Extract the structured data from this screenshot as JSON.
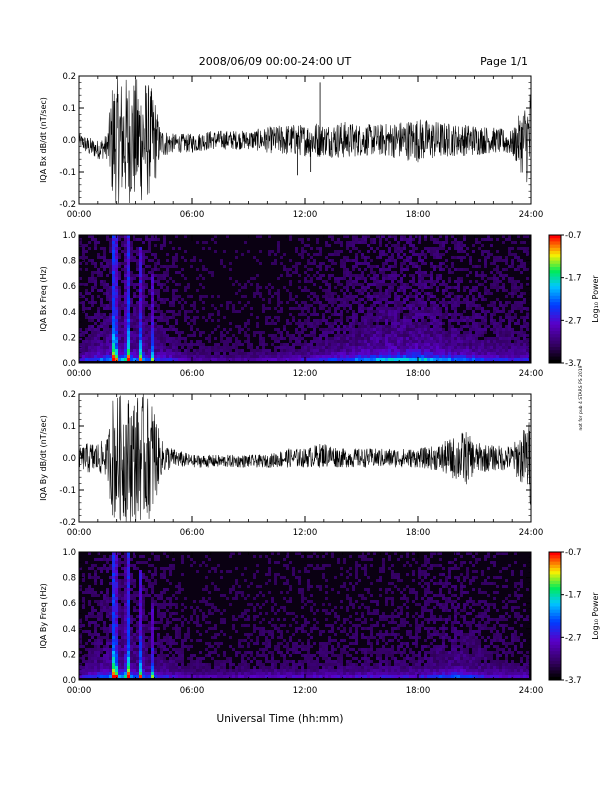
{
  "header": {
    "title": "2008/06/09  00:00-24:00 UT",
    "page": "Page 1/1"
  },
  "side_note": "not for pub 4 STARS PS 2019",
  "chart_data": [
    {
      "type": "line",
      "ylabel": "IQA Bx dB/dt (nT/sec)",
      "ylim": [
        -0.2,
        0.2
      ],
      "yticks": [
        "0.2",
        "0.1",
        "0.0",
        "-0.1",
        "-0.2"
      ],
      "xlim": [
        "00:00",
        "24:00"
      ],
      "xticks": [
        "00:00",
        "06:00",
        "12:00",
        "18:00",
        "24:00"
      ],
      "series": [
        {
          "time_hours": [
            0,
            0.5,
            1,
            1.5,
            1.8,
            2,
            2.5,
            3,
            3.5,
            4,
            4.3,
            5,
            6,
            7,
            8,
            9,
            10,
            11,
            12,
            12.5,
            13,
            14,
            15,
            16,
            17,
            18,
            19,
            20,
            21,
            22,
            23,
            23.9,
            24
          ],
          "amplitude": [
            0.02,
            0.03,
            0.03,
            0.04,
            0.2,
            0.2,
            0.2,
            0.2,
            0.2,
            0.15,
            0.05,
            0.03,
            0.03,
            0.03,
            0.03,
            0.03,
            0.04,
            0.05,
            0.05,
            0.06,
            0.05,
            0.06,
            0.05,
            0.05,
            0.06,
            0.07,
            0.06,
            0.05,
            0.05,
            0.04,
            0.04,
            0.15,
            0.2
          ],
          "baseline": [
            0.0,
            -0.02,
            -0.03,
            -0.02,
            0.0,
            0.0,
            0.0,
            0.0,
            0.0,
            0.0,
            -0.01,
            -0.01,
            -0.01,
            0.0,
            0.0,
            0.0,
            0.0,
            0.0,
            0.0,
            0.0,
            0.0,
            0.0,
            0.0,
            0.0,
            0.0,
            0.0,
            0.0,
            0.0,
            0.0,
            0.0,
            -0.01,
            0.0,
            0.0
          ],
          "spikes": [
            {
              "t": 12.8,
              "v": 0.18
            },
            {
              "t": 11.6,
              "v": -0.11
            },
            {
              "t": 12.3,
              "v": -0.1
            }
          ]
        }
      ]
    },
    {
      "type": "heatmap",
      "ylabel": "IQA Bx Freq (Hz)",
      "ylim": [
        0.0,
        1.0
      ],
      "yticks": [
        "1.0",
        "0.8",
        "0.6",
        "0.4",
        "0.2",
        "0.0"
      ],
      "xlim": [
        "00:00",
        "24:00"
      ],
      "xticks": [
        "00:00",
        "06:00",
        "12:00",
        "18:00",
        "24:00"
      ],
      "colorbar": {
        "label": "Log₁₀ Power",
        "range": [
          -3.7,
          -0.7
        ],
        "ticks": [
          "-0.7",
          "-1.7",
          "-2.7",
          "-3.7"
        ]
      },
      "bursts": [
        {
          "t": 1.9,
          "width": 0.12,
          "strength": 1.0,
          "top": 1.0
        },
        {
          "t": 2.6,
          "width": 0.1,
          "strength": 0.85,
          "top": 1.0
        },
        {
          "t": 3.3,
          "width": 0.1,
          "strength": 0.6,
          "top": 0.9
        },
        {
          "t": 3.9,
          "width": 0.08,
          "strength": 0.45,
          "top": 0.7
        }
      ],
      "activity_hours": [
        0,
        2,
        4,
        6,
        8,
        10,
        12,
        14,
        16,
        18,
        20,
        22,
        24
      ],
      "activity_level": [
        0.35,
        0.7,
        0.5,
        0.25,
        0.2,
        0.25,
        0.35,
        0.5,
        0.7,
        0.75,
        0.6,
        0.45,
        0.4
      ]
    },
    {
      "type": "line",
      "ylabel": "IQA By dB/dt (nT/sec)",
      "ylim": [
        -0.2,
        0.2
      ],
      "yticks": [
        "0.2",
        "0.1",
        "0.0",
        "-0.1",
        "-0.2"
      ],
      "xlim": [
        "00:00",
        "24:00"
      ],
      "xticks": [
        "00:00",
        "06:00",
        "12:00",
        "18:00",
        "24:00"
      ],
      "series": [
        {
          "time_hours": [
            0,
            0.5,
            1,
            1.5,
            1.8,
            2,
            2.5,
            3,
            3.5,
            4,
            4.3,
            5,
            6,
            7,
            8,
            9,
            10,
            11,
            12,
            13,
            14,
            15,
            16,
            17,
            18,
            19,
            20,
            20.5,
            21,
            22,
            23,
            23.9,
            24
          ],
          "amplitude": [
            0.03,
            0.05,
            0.05,
            0.06,
            0.2,
            0.2,
            0.2,
            0.2,
            0.2,
            0.18,
            0.06,
            0.03,
            0.02,
            0.02,
            0.02,
            0.02,
            0.02,
            0.03,
            0.03,
            0.04,
            0.03,
            0.03,
            0.03,
            0.03,
            0.03,
            0.04,
            0.07,
            0.09,
            0.05,
            0.04,
            0.04,
            0.12,
            0.2
          ],
          "baseline": [
            0.0,
            0.0,
            0.0,
            0.0,
            0.0,
            0.0,
            0.0,
            0.0,
            0.0,
            0.0,
            0.0,
            0.0,
            -0.01,
            -0.01,
            -0.01,
            -0.01,
            -0.01,
            0.0,
            0.0,
            0.01,
            0.0,
            0.0,
            0.0,
            0.0,
            0.0,
            0.0,
            0.0,
            0.0,
            0.0,
            0.0,
            0.0,
            0.0,
            0.0
          ],
          "spikes": []
        }
      ]
    },
    {
      "type": "heatmap",
      "ylabel": "IQA By Freq (Hz)",
      "ylim": [
        0.0,
        1.0
      ],
      "yticks": [
        "1.0",
        "0.8",
        "0.6",
        "0.4",
        "0.2",
        "0.0"
      ],
      "xlim": [
        "00:00",
        "24:00"
      ],
      "xticks": [
        "00:00",
        "06:00",
        "12:00",
        "18:00",
        "24:00"
      ],
      "colorbar": {
        "label": "Log₁₀ Power",
        "range": [
          -3.7,
          -0.7
        ],
        "ticks": [
          "-0.7",
          "-1.7",
          "-2.7",
          "-3.7"
        ]
      },
      "bursts": [
        {
          "t": 1.9,
          "width": 0.12,
          "strength": 1.0,
          "top": 1.0
        },
        {
          "t": 2.6,
          "width": 0.1,
          "strength": 0.85,
          "top": 1.0
        },
        {
          "t": 3.3,
          "width": 0.1,
          "strength": 0.6,
          "top": 0.85
        },
        {
          "t": 3.9,
          "width": 0.08,
          "strength": 0.45,
          "top": 0.6
        }
      ],
      "activity_hours": [
        0,
        2,
        4,
        6,
        8,
        10,
        12,
        14,
        16,
        18,
        20,
        22,
        24
      ],
      "activity_level": [
        0.3,
        0.7,
        0.45,
        0.25,
        0.25,
        0.3,
        0.3,
        0.3,
        0.35,
        0.35,
        0.55,
        0.35,
        0.3
      ]
    }
  ],
  "xlabel": "Universal Time (hh:mm)"
}
